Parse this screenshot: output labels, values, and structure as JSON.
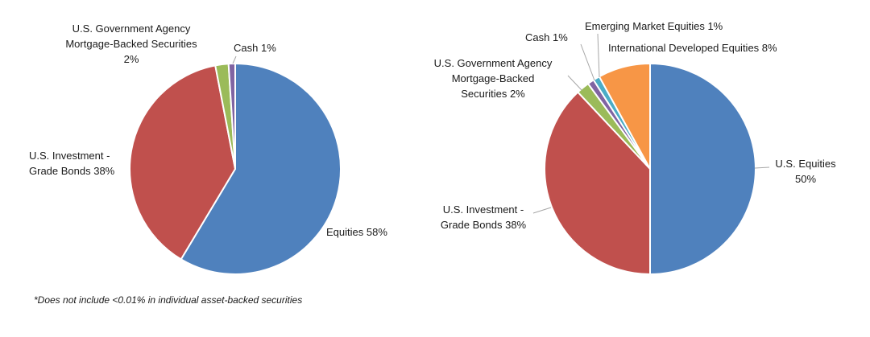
{
  "chart_data": [
    {
      "type": "pie",
      "title": "",
      "slices": [
        {
          "label": "Equities",
          "value": 58,
          "text": "Equities 58%",
          "color": "#4F81BD"
        },
        {
          "label": "U.S. Investment - Grade Bonds",
          "value": 38,
          "text": "U.S. Investment -\nGrade Bonds 38%",
          "color": "#C0504D"
        },
        {
          "label": "U.S. Government Agency Mortgage-Backed Securities",
          "value": 2,
          "text": "U.S. Government Agency\nMortgage-Backed Securities\n2%",
          "color": "#9BBB59"
        },
        {
          "label": "Cash",
          "value": 1,
          "text": "Cash  1%",
          "color": "#8064A2"
        }
      ],
      "footnote": "*Does not include <0.01% in individual asset-backed securities"
    },
    {
      "type": "pie",
      "title": "",
      "slices": [
        {
          "label": "U.S. Equities",
          "value": 50,
          "text": "U.S. Equities\n50%",
          "color": "#4F81BD"
        },
        {
          "label": "U.S. Investment - Grade Bonds",
          "value": 38,
          "text": "U.S. Investment -\nGrade Bonds 38%",
          "color": "#C0504D"
        },
        {
          "label": "U.S. Government Agency Mortgage-Backed Securities",
          "value": 2,
          "text": "U.S. Government Agency\nMortgage-Backed\nSecurities 2%",
          "color": "#9BBB59"
        },
        {
          "label": "Cash",
          "value": 1,
          "text": "Cash  1%",
          "color": "#8064A2"
        },
        {
          "label": "Emerging Market Equities",
          "value": 1,
          "text": "Emerging Market Equities 1%",
          "color": "#4BACC6"
        },
        {
          "label": "International Developed Equities",
          "value": 8,
          "text": "International Developed Equities 8%",
          "color": "#F79646"
        }
      ]
    }
  ]
}
